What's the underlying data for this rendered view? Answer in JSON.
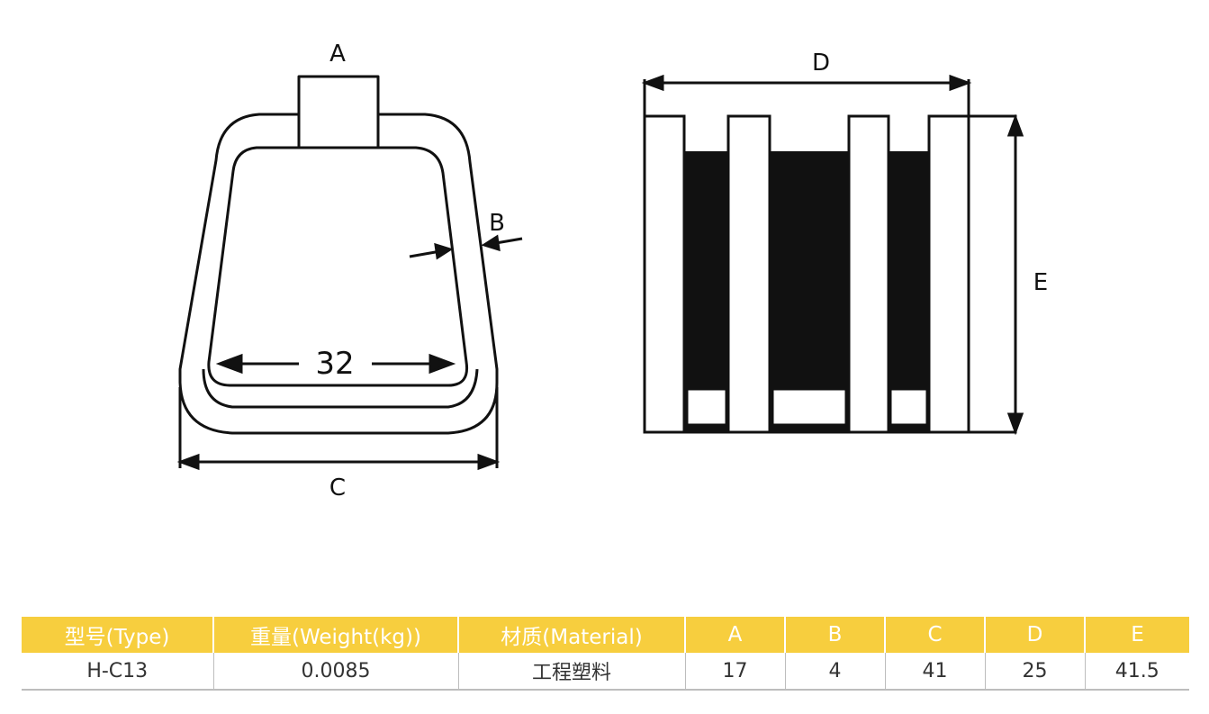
{
  "diagram": {
    "label_a": "A",
    "label_b": "B",
    "label_c": "C",
    "label_d": "D",
    "label_e": "E",
    "inner_width": "32"
  },
  "table": {
    "headers": [
      "型号(Type)",
      "重量(Weight(kg))",
      "材质(Material)",
      "A",
      "B",
      "C",
      "D",
      "E"
    ],
    "row": [
      "H-C13",
      "0.0085",
      "工程塑料",
      "17",
      "4",
      "41",
      "25",
      "41.5"
    ]
  },
  "colors": {
    "header_bg": "#f7ce3e",
    "header_text": "#ffffff",
    "line": "#111111"
  }
}
